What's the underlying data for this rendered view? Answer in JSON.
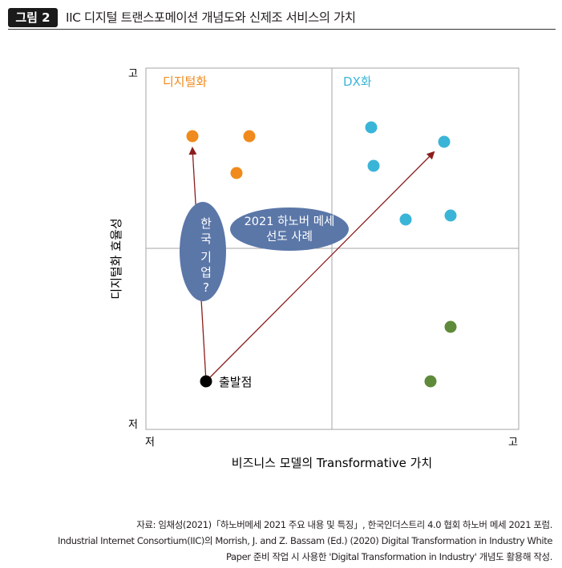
{
  "figure": {
    "label": "그림 2",
    "title": "IIC 디지털 트랜스포메이션 개념도와 신제조 서비스의 가치"
  },
  "axes": {
    "y_label": "디지털화 효율성",
    "y_high": "고",
    "y_low": "저",
    "x_label": "비즈니스 모델의 Transformative 가치",
    "x_low": "저",
    "x_high": "고"
  },
  "quadrants": {
    "top_left": "디지털화",
    "top_right": "DX화"
  },
  "labels": {
    "start": "출발점",
    "korea_line1": "한",
    "korea_line2": "국",
    "korea_line3": "기",
    "korea_line4": "업",
    "korea_line5": "?",
    "case_line1": "2021 하노버 메세",
    "case_line2": "선도 사례"
  },
  "colors": {
    "orange": "#f08a1c",
    "cyan": "#3ab5d8",
    "green": "#5e8a3a",
    "arrow": "#8b1d1d",
    "ellipse": "#5b77a8"
  },
  "source": {
    "line1": "자료: 임채성(2021)「하노버메세 2021 주요 내용 및 특징」, 한국인더스트리 4.0 협회 하노버 메세 2021 포럼.",
    "line2": "Industrial Internet Consortium(IIC)의 Morrish, J. and Z. Bassam (Ed.) (2020) Digital Transformation in Industry White",
    "line3": "Paper 준비 작업 시 사용한 'Digital Transformation in Industry' 개념도 활용해 작성."
  }
}
